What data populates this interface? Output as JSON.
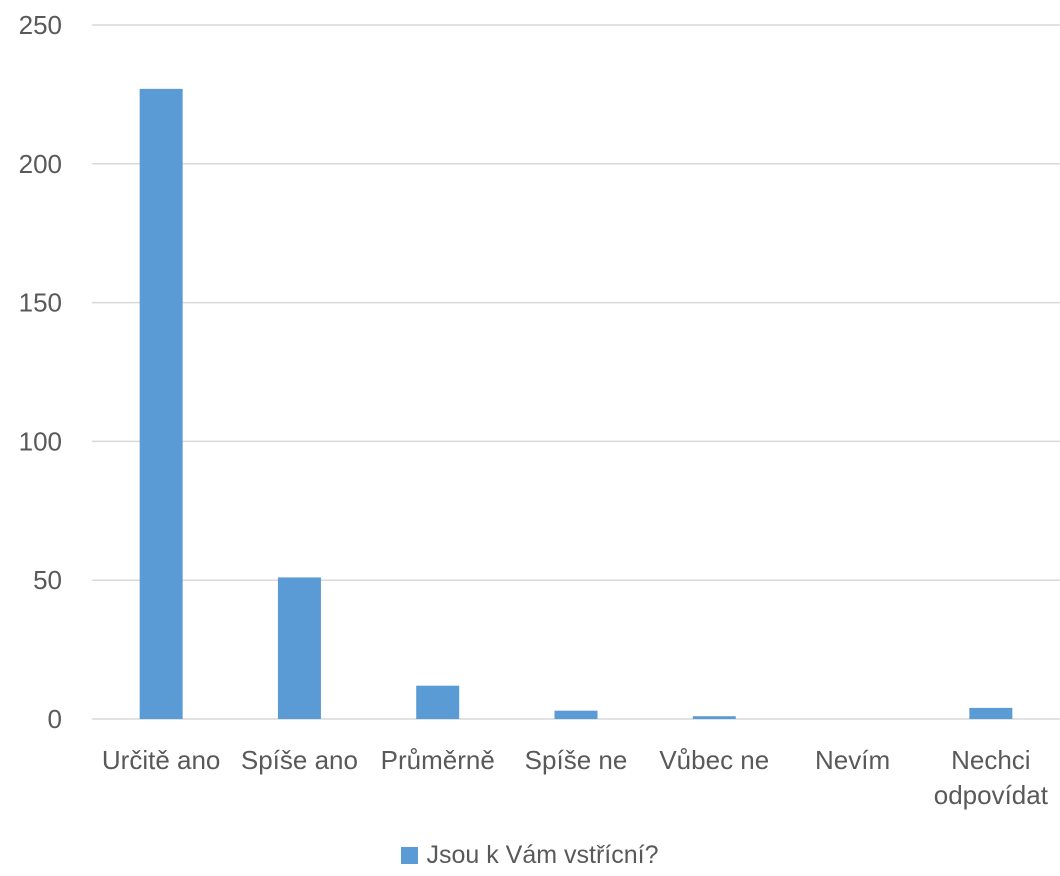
{
  "chart_data": {
    "type": "bar",
    "categories": [
      "Určitě ano",
      "Spíše ano",
      "Průměrně",
      "Spíše ne",
      "Vůbec ne",
      "Nevím",
      "Nechci odpovídat"
    ],
    "category_label_lines": [
      [
        "Určitě ano"
      ],
      [
        "Spíše ano"
      ],
      [
        "Průměrně"
      ],
      [
        "Spíše ne"
      ],
      [
        "Vůbec ne"
      ],
      [
        "Nevím"
      ],
      [
        "Nechci",
        "odpovídat"
      ]
    ],
    "series": [
      {
        "name": "Jsou k Vám vstřícní?",
        "values": [
          227,
          51,
          12,
          3,
          1,
          0,
          4
        ]
      }
    ],
    "y_ticks": [
      0,
      50,
      100,
      150,
      200,
      250
    ],
    "ylim": [
      0,
      250
    ],
    "grid": true,
    "legend_position": "bottom",
    "colors": {
      "bar": "#5B9BD5",
      "grid": "#D9D9D9",
      "text": "#595959"
    }
  }
}
